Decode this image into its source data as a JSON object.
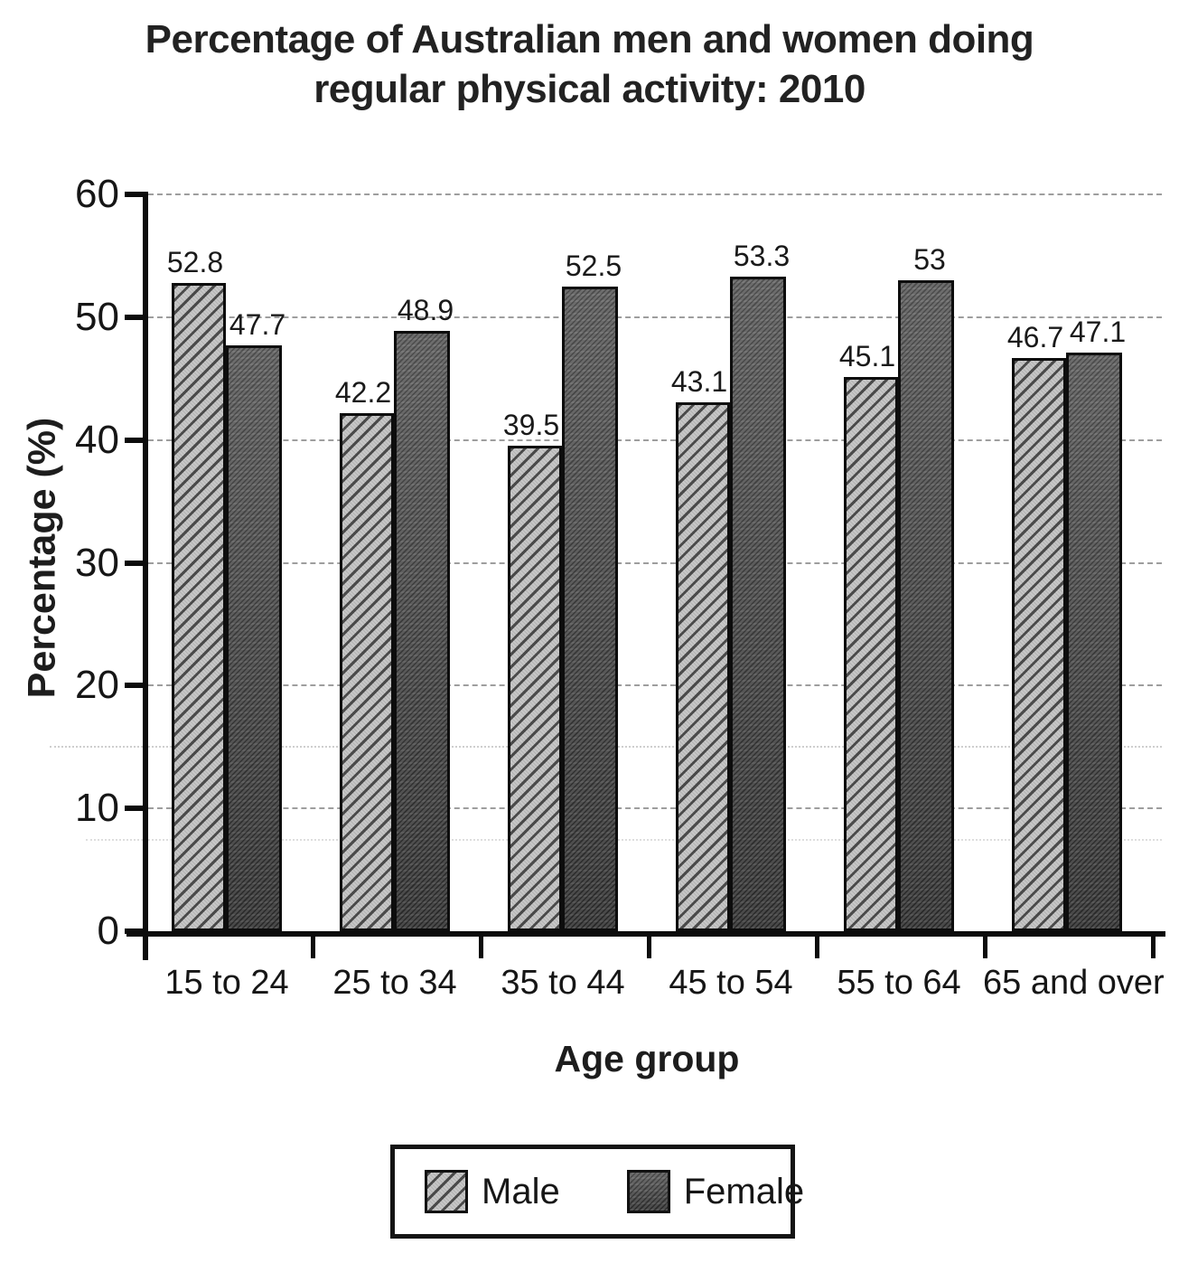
{
  "chart_data": {
    "type": "bar",
    "title": "Percentage of Australian men and women doing regular physical activity: 2010",
    "title_line1": "Percentage of Australian men and women doing",
    "title_line2": "regular physical activity: 2010",
    "categories": [
      "15 to 24",
      "25 to 34",
      "35 to 44",
      "45 to 54",
      "55 to 64",
      "65 and over"
    ],
    "series": [
      {
        "name": "Male",
        "values": [
          52.8,
          42.2,
          39.5,
          43.1,
          45.1,
          46.7
        ]
      },
      {
        "name": "Female",
        "values": [
          47.7,
          48.9,
          52.5,
          53.3,
          53,
          47.1
        ]
      }
    ],
    "xlabel": "Age group",
    "ylabel": "Percentage (%)",
    "ylim": [
      0,
      60
    ],
    "yticks": [
      0,
      10,
      20,
      30,
      40,
      50,
      60
    ],
    "grid": true,
    "gridline_style": "dashed",
    "legend_position": "bottom",
    "bar_labels_shown": true,
    "colors": {
      "male_fill": "#c7c7c7",
      "male_hatch": "#3a3a3a",
      "female_fill": "#555555",
      "axis": "#0c0c0c",
      "grid": "#9e9e9e",
      "text": "#1a1a1a",
      "title": "#222222"
    }
  },
  "legend": {
    "items": [
      {
        "label": "Male",
        "swatch": "light-diagonal-hatch"
      },
      {
        "label": "Female",
        "swatch": "dark-speckled"
      }
    ]
  }
}
